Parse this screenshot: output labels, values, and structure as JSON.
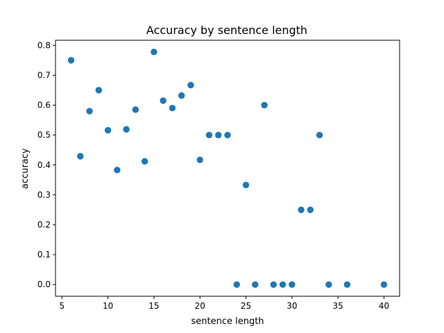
{
  "chart_data": {
    "type": "scatter",
    "title": "Accuracy by sentence length",
    "xlabel": "sentence length",
    "ylabel": "accuracy",
    "xlim": [
      4.3,
      41.7
    ],
    "ylim": [
      -0.039,
      0.817
    ],
    "xticks": [
      5,
      10,
      15,
      20,
      25,
      30,
      35,
      40
    ],
    "yticks": [
      0.0,
      0.1,
      0.2,
      0.3,
      0.4,
      0.5,
      0.6,
      0.7,
      0.8
    ],
    "ytick_labels": [
      "0.0",
      "0.1",
      "0.2",
      "0.3",
      "0.4",
      "0.5",
      "0.6",
      "0.7",
      "0.8"
    ],
    "grid": false,
    "marker_color": "#1f77b4",
    "points": [
      {
        "x": 6,
        "y": 0.75
      },
      {
        "x": 7,
        "y": 0.429
      },
      {
        "x": 8,
        "y": 0.58
      },
      {
        "x": 9,
        "y": 0.65
      },
      {
        "x": 10,
        "y": 0.516
      },
      {
        "x": 11,
        "y": 0.383
      },
      {
        "x": 12,
        "y": 0.519
      },
      {
        "x": 13,
        "y": 0.585
      },
      {
        "x": 14,
        "y": 0.412
      },
      {
        "x": 15,
        "y": 0.778
      },
      {
        "x": 16,
        "y": 0.615
      },
      {
        "x": 17,
        "y": 0.59
      },
      {
        "x": 18,
        "y": 0.632
      },
      {
        "x": 19,
        "y": 0.667
      },
      {
        "x": 20,
        "y": 0.417
      },
      {
        "x": 21,
        "y": 0.5
      },
      {
        "x": 22,
        "y": 0.5
      },
      {
        "x": 23,
        "y": 0.5
      },
      {
        "x": 24,
        "y": 0.0
      },
      {
        "x": 25,
        "y": 0.333
      },
      {
        "x": 26,
        "y": 0.0
      },
      {
        "x": 27,
        "y": 0.6
      },
      {
        "x": 28,
        "y": 0.0
      },
      {
        "x": 29,
        "y": 0.0
      },
      {
        "x": 30,
        "y": 0.0
      },
      {
        "x": 31,
        "y": 0.25
      },
      {
        "x": 32,
        "y": 0.25
      },
      {
        "x": 33,
        "y": 0.5
      },
      {
        "x": 34,
        "y": 0.0
      },
      {
        "x": 36,
        "y": 0.0
      },
      {
        "x": 40,
        "y": 0.0
      }
    ]
  }
}
